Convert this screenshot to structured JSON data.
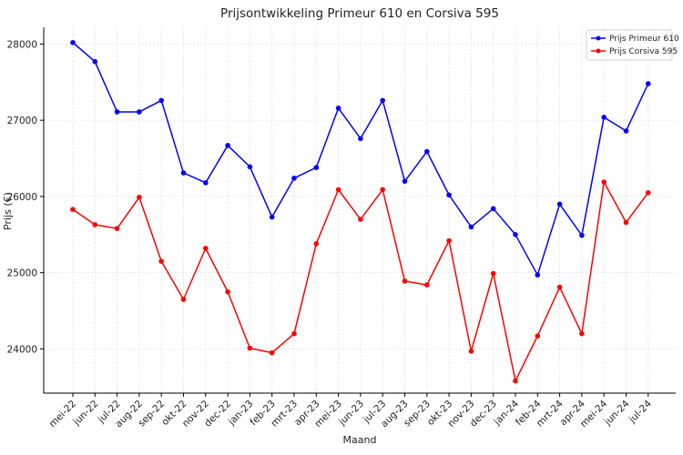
{
  "chart_data": {
    "type": "line",
    "title": "Prijsontwikkeling Primeur 610 en Corsiva 595",
    "xlabel": "Maand",
    "ylabel": "Prijs (€)",
    "categories": [
      "mei-22",
      "jun-22",
      "jul-22",
      "aug-22",
      "sep-22",
      "okt-22",
      "nov-22",
      "dec-22",
      "jan-23",
      "feb-23",
      "mrt-23",
      "apr-23",
      "mei-23",
      "jun-23",
      "jul-23",
      "aug-23",
      "sep-23",
      "okt-23",
      "nov-23",
      "dec-23",
      "jan-24",
      "feb-24",
      "mrt-24",
      "apr-24",
      "mei-24",
      "jun-24",
      "jul-24"
    ],
    "y_ticks": [
      24000,
      25000,
      26000,
      27000,
      28000
    ],
    "ylim": [
      23420,
      28220
    ],
    "grid": true,
    "legend_position": "top-right",
    "series": [
      {
        "name": "Prijs Primeur 610",
        "color": "#0000ff",
        "values": [
          28020,
          27770,
          27110,
          27110,
          27260,
          26310,
          26180,
          26670,
          26390,
          25730,
          26240,
          26380,
          27160,
          26760,
          27260,
          26200,
          26590,
          26020,
          25600,
          25840,
          25500,
          24970,
          25900,
          25490,
          27040,
          26860,
          27480
        ]
      },
      {
        "name": "Prijs Corsiva 595",
        "color": "#ff0000",
        "values": [
          25830,
          25630,
          25580,
          25990,
          25150,
          24650,
          25320,
          24750,
          24010,
          23950,
          24200,
          25380,
          26090,
          25700,
          26090,
          24890,
          24840,
          25420,
          23970,
          24990,
          23580,
          24170,
          24810,
          24200,
          26190,
          25660,
          26050
        ]
      }
    ]
  }
}
